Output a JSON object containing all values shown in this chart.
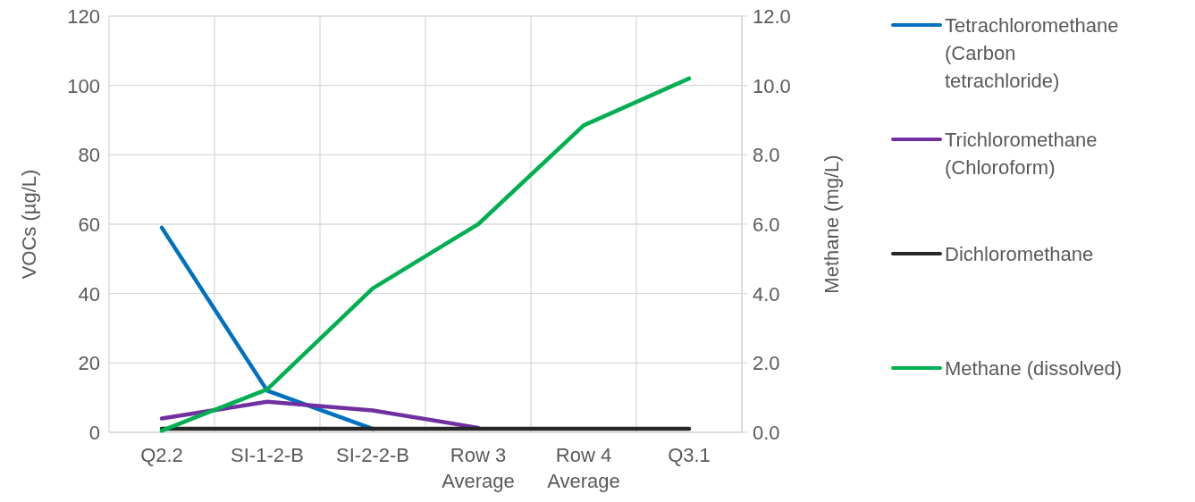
{
  "chart_data": {
    "type": "line",
    "categories": [
      "Q2.2",
      "SI-1-2-B",
      "SI-2-2-B",
      "Row 3 Average",
      "Row 4 Average",
      "Q3.1"
    ],
    "ylabel": "VOCs (µg/L)",
    "y2label": "Methane (mg/L)",
    "ylim": [
      0,
      120
    ],
    "yticks": [
      0,
      20,
      40,
      60,
      80,
      100,
      120
    ],
    "y2lim": [
      0,
      12
    ],
    "y2ticks": [
      {
        "value": 0,
        "label": "0.0"
      },
      {
        "value": 2,
        "label": "2.0"
      },
      {
        "value": 4,
        "label": "4.0"
      },
      {
        "value": 6,
        "label": "6.0"
      },
      {
        "value": 8,
        "label": "8.0"
      },
      {
        "value": 10,
        "label": "10.0"
      },
      {
        "value": 12,
        "label": "12.0"
      }
    ],
    "grid": true,
    "legend": "right",
    "marker": "none",
    "line_style": "solid",
    "series": [
      {
        "name": "Tetrachloromethane (Carbon tetrachloride)",
        "color": "#0070c0",
        "values": [
          59,
          12,
          1,
          null,
          null,
          null
        ]
      },
      {
        "name": "Trichloromethane (Chloroform)",
        "color": "#7030a0",
        "values": [
          4,
          8.8,
          6.3,
          1.3,
          null,
          null
        ]
      },
      {
        "name": "Dichloromethane",
        "color": "#262626",
        "values": [
          1,
          1,
          1,
          1,
          1,
          1
        ]
      },
      {
        "name": "Methane (dissolved)",
        "color": "#00b050",
        "axis": "y2",
        "values": [
          0.05,
          1.24,
          4.15,
          6.0,
          8.85,
          10.2
        ]
      }
    ]
  }
}
